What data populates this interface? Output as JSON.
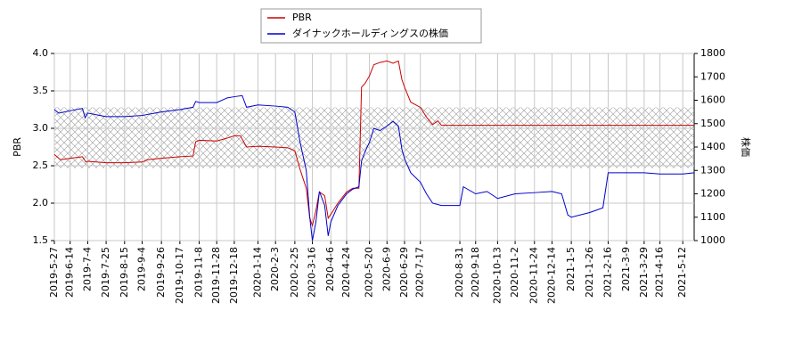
{
  "chart_data": {
    "type": "line",
    "ylabel": "PBR",
    "y2label": "株価",
    "xlim": [
      "2019-5-27",
      "2021-5-25"
    ],
    "xticks": [
      "2019-5-27",
      "2019-6-14",
      "2019-7-4",
      "2019-7-25",
      "2019-8-15",
      "2019-9-4",
      "2019-9-26",
      "2019-10-17",
      "2019-11-8",
      "2019-11-28",
      "2019-12-18",
      "2020-1-14",
      "2020-2-3",
      "2020-2-25",
      "2020-3-16",
      "2020-4-6",
      "2020-4-24",
      "2020-5-20",
      "2020-6-9",
      "2020-6-29",
      "2020-7-17",
      "2020-8-31",
      "2020-9-18",
      "2020-10-13",
      "2020-11-2",
      "2020-11-24",
      "2020-12-14",
      "2021-1-5",
      "2021-1-26",
      "2021-2-16",
      "2021-3-9",
      "2021-3-29",
      "2021-4-16",
      "2021-5-12"
    ],
    "ylim": [
      1.5,
      4.0
    ],
    "yticks": [
      1.5,
      {
        "value": 2,
        "label": "2.0"
      },
      2.5,
      {
        "value": 3,
        "label": "3.0"
      },
      3.5,
      {
        "value": 4,
        "label": "4.0"
      }
    ],
    "y2lim": [
      1000,
      1800
    ],
    "y2ticks": [
      1000,
      1100,
      1200,
      1300,
      1400,
      1500,
      1600,
      1700,
      1800
    ],
    "grid": true,
    "band": [
      2.47,
      3.28
    ],
    "series": [
      {
        "name": "PBR",
        "color": "#cc0000",
        "x": [
          "2019-5-27",
          "2019-6-3",
          "2019-6-14",
          "2019-6-28",
          "2019-7-2",
          "2019-7-4",
          "2019-7-25",
          "2019-8-15",
          "2019-9-4",
          "2019-9-10",
          "2019-9-26",
          "2019-10-17",
          "2019-11-1",
          "2019-11-4",
          "2019-11-8",
          "2019-11-28",
          "2019-12-10",
          "2019-12-18",
          "2019-12-25",
          "2020-1-1",
          "2020-1-14",
          "2020-2-3",
          "2020-2-17",
          "2020-2-25",
          "2020-3-2",
          "2020-3-9",
          "2020-3-13",
          "2020-3-16",
          "2020-3-20",
          "2020-3-24",
          "2020-3-30",
          "2020-4-3",
          "2020-4-6",
          "2020-4-14",
          "2020-4-24",
          "2020-5-1",
          "2020-5-8",
          "2020-5-11",
          "2020-5-15",
          "2020-5-20",
          "2020-5-25",
          "2020-6-1",
          "2020-6-9",
          "2020-6-16",
          "2020-6-22",
          "2020-6-26",
          "2020-6-29",
          "2020-7-6",
          "2020-7-17",
          "2020-7-24",
          "2020-7-31",
          "2020-8-6",
          "2020-8-10",
          "2021-5-25"
        ],
        "values": [
          2.65,
          2.58,
          2.6,
          2.62,
          2.55,
          2.56,
          2.54,
          2.54,
          2.55,
          2.58,
          2.6,
          2.62,
          2.63,
          2.82,
          2.84,
          2.83,
          2.87,
          2.9,
          2.9,
          2.75,
          2.76,
          2.75,
          2.74,
          2.7,
          2.45,
          2.2,
          1.8,
          1.7,
          1.9,
          2.15,
          2.1,
          1.8,
          1.85,
          2.0,
          2.15,
          2.2,
          2.2,
          3.55,
          3.6,
          3.7,
          3.85,
          3.88,
          3.9,
          3.87,
          3.9,
          3.65,
          3.55,
          3.35,
          3.28,
          3.15,
          3.05,
          3.1,
          3.04,
          3.04
        ]
      },
      {
        "name": "ダイナックホールディングスの株価",
        "color": "#0000cc",
        "axis": "y2",
        "x": [
          "2019-5-27",
          "2019-6-1",
          "2019-6-14",
          "2019-6-28",
          "2019-7-1",
          "2019-7-4",
          "2019-7-25",
          "2019-8-15",
          "2019-9-4",
          "2019-9-26",
          "2019-10-17",
          "2019-11-1",
          "2019-11-4",
          "2019-11-8",
          "2019-11-28",
          "2019-12-10",
          "2019-12-18",
          "2019-12-27",
          "2020-1-1",
          "2020-1-14",
          "2020-2-3",
          "2020-2-17",
          "2020-2-25",
          "2020-3-2",
          "2020-3-9",
          "2020-3-13",
          "2020-3-16",
          "2020-3-20",
          "2020-3-24",
          "2020-3-30",
          "2020-4-3",
          "2020-4-6",
          "2020-4-14",
          "2020-4-24",
          "2020-5-1",
          "2020-5-8",
          "2020-5-11",
          "2020-5-15",
          "2020-5-20",
          "2020-5-25",
          "2020-6-1",
          "2020-6-9",
          "2020-6-16",
          "2020-6-22",
          "2020-6-26",
          "2020-6-29",
          "2020-7-6",
          "2020-7-17",
          "2020-7-24",
          "2020-7-31",
          "2020-8-10",
          "2020-8-20",
          "2020-8-31",
          "2020-9-4",
          "2020-9-18",
          "2020-10-1",
          "2020-10-13",
          "2020-11-2",
          "2020-11-24",
          "2020-12-14",
          "2020-12-25",
          "2021-1-1",
          "2021-1-5",
          "2021-1-26",
          "2021-2-10",
          "2021-2-16",
          "2021-3-9",
          "2021-3-29",
          "2021-4-16",
          "2021-5-12",
          "2021-5-25"
        ],
        "values": [
          1560,
          1545,
          1555,
          1565,
          1525,
          1545,
          1530,
          1530,
          1535,
          1550,
          1560,
          1570,
          1595,
          1590,
          1590,
          1610,
          1615,
          1620,
          1570,
          1580,
          1575,
          1570,
          1550,
          1420,
          1300,
          1100,
          1000,
          1080,
          1210,
          1150,
          1020,
          1080,
          1150,
          1200,
          1220,
          1230,
          1340,
          1380,
          1420,
          1480,
          1470,
          1490,
          1510,
          1490,
          1390,
          1350,
          1290,
          1250,
          1200,
          1160,
          1150,
          1150,
          1150,
          1230,
          1200,
          1210,
          1180,
          1200,
          1205,
          1210,
          1200,
          1110,
          1100,
          1120,
          1140,
          1290,
          1290,
          1290,
          1285,
          1285,
          1290
        ]
      }
    ]
  }
}
